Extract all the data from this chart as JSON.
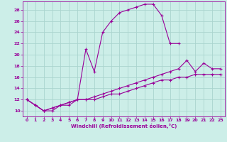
{
  "xlabel": "Windchill (Refroidissement éolien,°C)",
  "bg_color": "#cceee8",
  "grid_color": "#aad4ce",
  "line_color": "#990099",
  "xlim": [
    -0.5,
    23.5
  ],
  "ylim": [
    9.0,
    29.5
  ],
  "yticks": [
    10,
    12,
    14,
    16,
    18,
    20,
    22,
    24,
    26,
    28
  ],
  "xticks": [
    0,
    1,
    2,
    3,
    4,
    5,
    6,
    7,
    8,
    9,
    10,
    11,
    12,
    13,
    14,
    15,
    16,
    17,
    18,
    19,
    20,
    21,
    22,
    23
  ],
  "curve1_x": [
    0,
    1,
    2,
    3,
    4,
    5,
    6,
    7,
    8,
    9,
    10,
    11,
    12,
    13,
    14,
    15,
    16,
    17,
    18
  ],
  "curve1_y": [
    12,
    11,
    10,
    10,
    11,
    11,
    12,
    21,
    17,
    24,
    26,
    27.5,
    28,
    28.5,
    29,
    29,
    27,
    22,
    22
  ],
  "curve2_x": [
    0,
    1,
    2,
    3,
    4,
    5,
    6,
    7,
    8,
    9,
    10,
    11,
    12,
    13,
    14,
    15,
    16,
    17,
    18,
    19,
    20,
    21,
    22,
    23
  ],
  "curve2_y": [
    12,
    11,
    10,
    10.5,
    11,
    11.5,
    12,
    12,
    12.5,
    13,
    13.5,
    14,
    14.5,
    15,
    15.5,
    16,
    16.5,
    17,
    17.5,
    19,
    17,
    18.5,
    17.5,
    17.5
  ],
  "curve3_x": [
    0,
    1,
    2,
    3,
    4,
    5,
    6,
    7,
    8,
    9,
    10,
    11,
    12,
    13,
    14,
    15,
    16,
    17,
    18,
    19,
    20,
    21,
    22,
    23
  ],
  "curve3_y": [
    12,
    11,
    10,
    10.5,
    11,
    11.5,
    12,
    12,
    12,
    12.5,
    13,
    13,
    13.5,
    14,
    14.5,
    15,
    15.5,
    15.5,
    16,
    16,
    16.5,
    16.5,
    16.5,
    16.5
  ]
}
